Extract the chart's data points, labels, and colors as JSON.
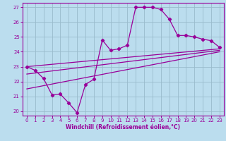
{
  "xlabel": "Windchill (Refroidissement éolien,°C)",
  "background_color": "#bbddee",
  "grid_color": "#99bbcc",
  "line_color": "#990099",
  "xlim": [
    -0.5,
    23.5
  ],
  "ylim": [
    19.7,
    27.3
  ],
  "yticks": [
    20,
    21,
    22,
    23,
    24,
    25,
    26,
    27
  ],
  "xticks": [
    0,
    1,
    2,
    3,
    4,
    5,
    6,
    7,
    8,
    9,
    10,
    11,
    12,
    13,
    14,
    15,
    16,
    17,
    18,
    19,
    20,
    21,
    22,
    23
  ],
  "series1_x": [
    0,
    1,
    2,
    3,
    4,
    5,
    6,
    7,
    8,
    9,
    10,
    11,
    12,
    13,
    14,
    15,
    16,
    17,
    18,
    19,
    20,
    21,
    22,
    23
  ],
  "series1_y": [
    23.0,
    22.75,
    22.2,
    21.1,
    21.15,
    20.55,
    19.9,
    21.8,
    22.15,
    24.8,
    24.1,
    24.2,
    24.45,
    27.0,
    27.0,
    27.0,
    26.85,
    26.2,
    25.1,
    25.1,
    25.0,
    24.85,
    24.75,
    24.3
  ],
  "trend1_x": [
    0,
    23
  ],
  "trend1_y": [
    23.0,
    24.2
  ],
  "trend2_x": [
    0,
    23
  ],
  "trend2_y": [
    22.5,
    24.1
  ],
  "trend3_x": [
    0,
    23
  ],
  "trend3_y": [
    21.5,
    24.0
  ]
}
